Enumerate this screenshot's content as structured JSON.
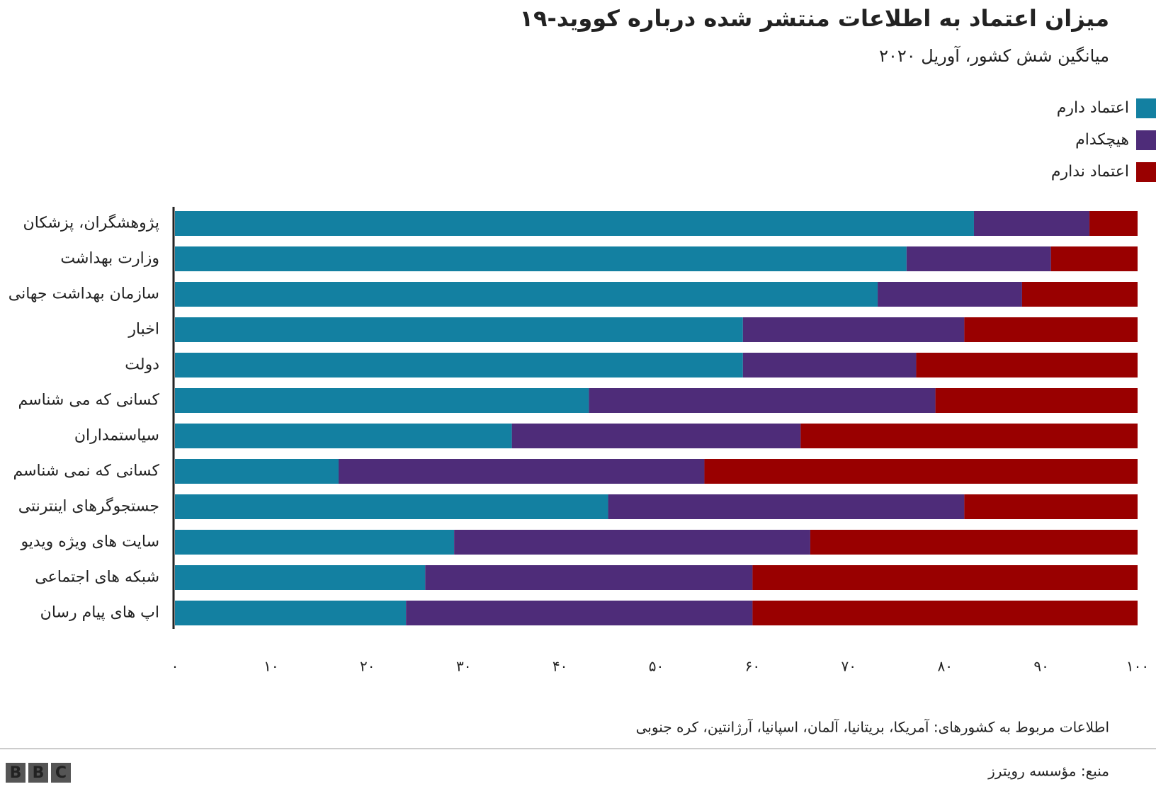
{
  "chart_data": {
    "type": "bar",
    "orientation": "horizontal",
    "stacked": true,
    "title": "میزان اعتماد به اطلاعات منتشر شده درباره کووید-۱۹",
    "subtitle": "میانگین شش کشور، آوریل ۲۰۲۰",
    "categories": [
      "پژوهشگران، پزشکان",
      "وزارت بهداشت",
      "سازمان بهداشت جهانی",
      "اخبار",
      "دولت",
      "کسانی که می شناسم",
      "سیاستمداران",
      "کسانی که نمی شناسم",
      "جستجوگرهای اینترنتی",
      "سایت های ویژه ویدیو",
      "شبکه های اجتماعی",
      "اپ های پیام رسان"
    ],
    "series": [
      {
        "name": "اعتماد دارم",
        "color": "#1380a1",
        "values": [
          83,
          76,
          73,
          59,
          59,
          43,
          35,
          17,
          45,
          29,
          26,
          24
        ]
      },
      {
        "name": "هیچکدام",
        "color": "#4e2c79",
        "values": [
          12,
          15,
          15,
          23,
          18,
          36,
          30,
          38,
          37,
          37,
          34,
          36
        ]
      },
      {
        "name": "اعتماد ندارم",
        "color": "#990000",
        "values": [
          5,
          9,
          12,
          18,
          23,
          21,
          35,
          45,
          18,
          34,
          40,
          40
        ]
      }
    ],
    "xlim": [
      0,
      100
    ],
    "xticks": [
      {
        "value": 0,
        "label": "۰"
      },
      {
        "value": 10,
        "label": "۱۰"
      },
      {
        "value": 20,
        "label": "۲۰"
      },
      {
        "value": 30,
        "label": "۳۰"
      },
      {
        "value": 40,
        "label": "۴۰"
      },
      {
        "value": 50,
        "label": "۵۰"
      },
      {
        "value": 60,
        "label": "۶۰"
      },
      {
        "value": 70,
        "label": "۷۰"
      },
      {
        "value": 80,
        "label": "۸۰"
      },
      {
        "value": 90,
        "label": "۹۰"
      },
      {
        "value": 100,
        "label": "۱۰۰"
      }
    ],
    "grid": false,
    "legend": "top-right",
    "note": "اطلاعات مربوط به کشورهای: آمریکا، بریتانیا، آلمان، اسپانیا، آرژانتین، کره جنوبی",
    "source": "منبع: مؤسسه رویترز",
    "logo": "BBC"
  }
}
